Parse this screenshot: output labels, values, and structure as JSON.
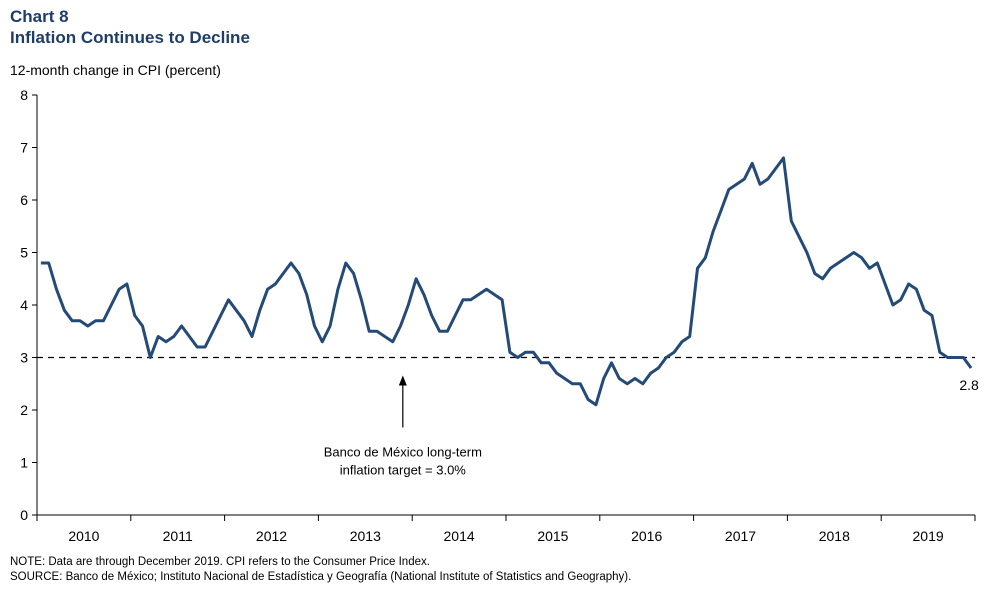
{
  "header": {
    "chart_number": "Chart 8",
    "title": "Inflation Continues to Decline",
    "y_axis_label": "12-month change in CPI (percent)"
  },
  "footer": {
    "note": "NOTE: Data are through December 2019. CPI refers to the Consumer Price Index.",
    "source": "SOURCE: Banco de México; Instituto Nacional de Estadística y Geografía  (National Institute of Statistics and Geography)."
  },
  "colors": {
    "series": "#244a78",
    "title": "#1f3d6b"
  },
  "chart_data": {
    "type": "line",
    "title": "Inflation Continues to Decline",
    "ylabel": "12-month change in CPI (percent)",
    "ylim": [
      0,
      8
    ],
    "y_ticks": [
      0,
      1,
      2,
      3,
      4,
      5,
      6,
      7,
      8
    ],
    "x_year_labels": [
      "2010",
      "2011",
      "2012",
      "2013",
      "2014",
      "2015",
      "2016",
      "2017",
      "2018",
      "2019"
    ],
    "x_start": "2010-01",
    "series": [
      {
        "values": [
          4.8,
          4.8,
          4.3,
          3.9,
          3.7,
          3.7,
          3.6,
          3.7,
          3.7,
          4.0,
          4.3,
          4.4,
          3.8,
          3.6,
          3.0,
          3.4,
          3.3,
          3.4,
          3.6,
          3.4,
          3.2,
          3.2,
          3.5,
          3.8,
          4.1,
          3.9,
          3.7,
          3.4,
          3.9,
          4.3,
          4.4,
          4.6,
          4.8,
          4.6,
          4.2,
          3.6,
          3.3,
          3.6,
          4.3,
          4.8,
          4.6,
          4.1,
          3.5,
          3.5,
          3.4,
          3.3,
          3.6,
          4.0,
          4.5,
          4.2,
          3.8,
          3.5,
          3.5,
          3.8,
          4.1,
          4.1,
          4.2,
          4.3,
          4.2,
          4.1,
          3.1,
          3.0,
          3.1,
          3.1,
          2.9,
          2.9,
          2.7,
          2.6,
          2.5,
          2.5,
          2.2,
          2.1,
          2.6,
          2.9,
          2.6,
          2.5,
          2.6,
          2.5,
          2.7,
          2.8,
          3.0,
          3.1,
          3.3,
          3.4,
          4.7,
          4.9,
          5.4,
          5.8,
          6.2,
          6.3,
          6.4,
          6.7,
          6.3,
          6.4,
          6.6,
          6.8,
          5.6,
          5.3,
          5.0,
          4.6,
          4.5,
          4.7,
          4.8,
          4.9,
          5.0,
          4.9,
          4.7,
          4.8,
          4.4,
          4.0,
          4.1,
          4.4,
          4.3,
          3.9,
          3.8,
          3.1,
          3.0,
          3.0,
          3.0,
          2.8
        ]
      }
    ],
    "reference_line": {
      "value": 3.0,
      "style": "dashed"
    },
    "annotations": {
      "target_line1": "Banco de México long-term",
      "target_line2": "inflation target = 3.0%",
      "end_label": "2.8"
    },
    "grid": false,
    "legend": "none"
  }
}
